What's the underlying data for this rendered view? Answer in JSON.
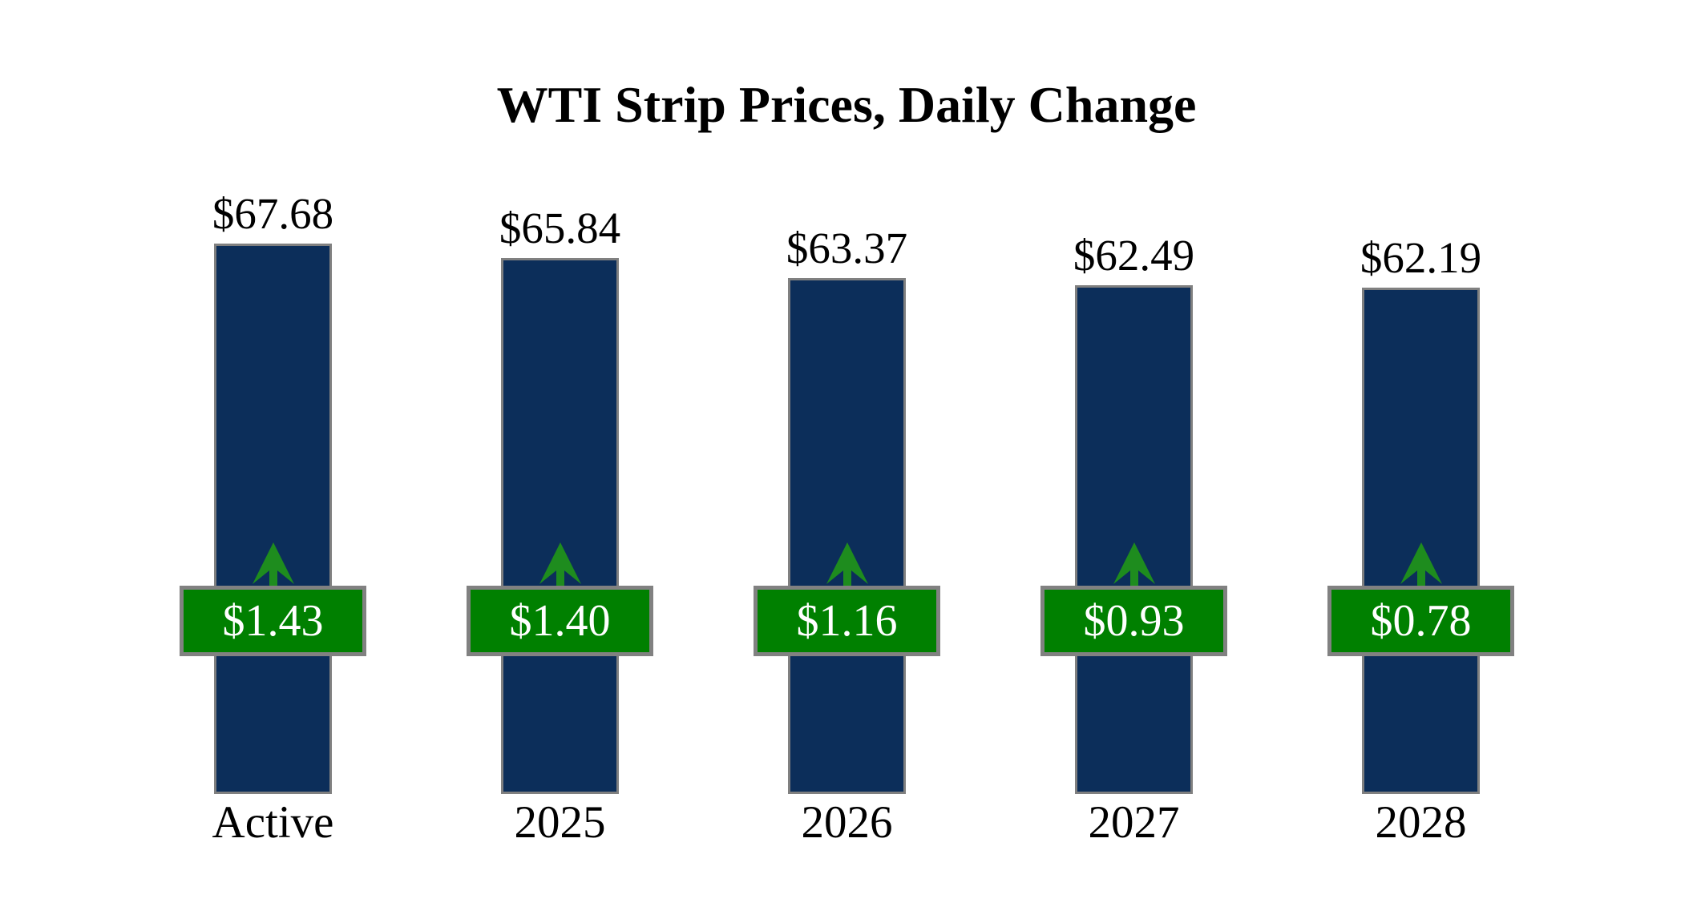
{
  "chart_data": {
    "type": "bar",
    "title": "WTI Strip Prices, Daily Change",
    "categories": [
      "Active",
      "2025",
      "2026",
      "2027",
      "2028"
    ],
    "series": [
      {
        "name": "strip_price",
        "values": [
          67.68,
          65.84,
          63.37,
          62.49,
          62.19
        ]
      },
      {
        "name": "daily_change",
        "values": [
          1.43,
          1.4,
          1.16,
          0.93,
          0.78
        ]
      }
    ],
    "points": [
      {
        "category": "Active",
        "price": 67.68,
        "price_label": "$67.68",
        "change": 1.43,
        "change_label": "$1.43",
        "direction": "up"
      },
      {
        "category": "2025",
        "price": 65.84,
        "price_label": "$65.84",
        "change": 1.4,
        "change_label": "$1.40",
        "direction": "up"
      },
      {
        "category": "2026",
        "price": 63.37,
        "price_label": "$63.37",
        "change": 1.16,
        "change_label": "$1.16",
        "direction": "up"
      },
      {
        "category": "2027",
        "price": 62.49,
        "price_label": "$62.49",
        "change": 0.93,
        "change_label": "$0.93",
        "direction": "up"
      },
      {
        "category": "2028",
        "price": 62.19,
        "price_label": "$62.19",
        "change": 0.78,
        "change_label": "$0.78",
        "direction": "up"
      }
    ],
    "ylim": [
      0,
      70
    ],
    "grid": false,
    "legend": "none",
    "axes_visible": false
  },
  "colors": {
    "bar_fill": "#0c2e5a",
    "bar_border": "#808080",
    "badge_fill": "#008000",
    "badge_border": "#818181",
    "arrow_green": "#1e8c1e",
    "badge_text": "#ffffff",
    "label_text": "#000000",
    "background": "#ffffff"
  },
  "icons": {
    "up_arrow": "up-arrow-icon"
  }
}
